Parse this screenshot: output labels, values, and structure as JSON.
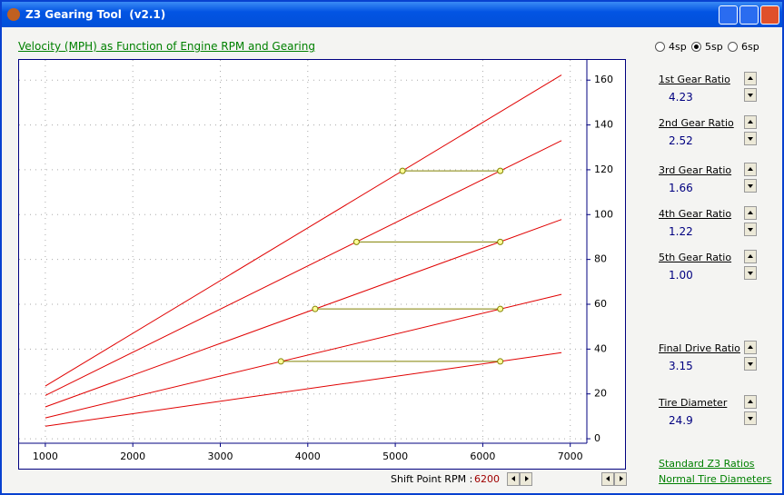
{
  "ui": {
    "window_title": "Z3 Gearing Tool  (v2.1)",
    "options": [
      "4sp",
      "5sp",
      "6sp"
    ],
    "gears": [
      {
        "label": "1st Gear Ratio",
        "value": "4.23"
      },
      {
        "label": "2nd Gear Ratio",
        "value": "2.52"
      },
      {
        "label": "3rd Gear Ratio",
        "value": "1.66"
      },
      {
        "label": "4th Gear Ratio",
        "value": "1.22"
      },
      {
        "label": "5th Gear Ratio",
        "value": "1.00"
      }
    ],
    "final_drive": {
      "label": "Final Drive Ratio",
      "value": "3.15"
    },
    "tire": {
      "label": "Tire Diameter",
      "value": "24.9"
    },
    "shift_label": "Shift Point RPM :",
    "shift_value": "6200",
    "links": [
      "Standard Z3 Ratios",
      "Normal Tire Diameters"
    ]
  },
  "chart_data": {
    "type": "line",
    "title": "Velocity (MPH) as Function of Engine RPM and Gearing",
    "xlim": [
      700,
      7190
    ],
    "ylim": [
      -2,
      169
    ],
    "xticks": [
      1000,
      2000,
      3000,
      4000,
      5000,
      6000,
      7000
    ],
    "yticks": [
      0,
      20,
      40,
      60,
      80,
      100,
      120,
      140,
      160
    ],
    "grid": true,
    "series": [
      {
        "color": "#e00000",
        "x": [
          1000,
          6900
        ],
        "values": [
          5.6,
          38.4
        ]
      },
      {
        "color": "#e00000",
        "x": [
          1000,
          6900
        ],
        "values": [
          9.3,
          64.4
        ]
      },
      {
        "color": "#e00000",
        "x": [
          1000,
          6900
        ],
        "values": [
          14.2,
          97.8
        ]
      },
      {
        "color": "#e00000",
        "x": [
          1000,
          6900
        ],
        "values": [
          19.3,
          133.0
        ]
      },
      {
        "color": "#e00000",
        "x": [
          1000,
          6900
        ],
        "values": [
          23.5,
          162.3
        ]
      },
      {
        "color": "#808000",
        "markers": true,
        "x": [
          3693,
          6200
        ],
        "values": [
          34.5,
          34.5
        ]
      },
      {
        "color": "#808000",
        "markers": true,
        "x": [
          4084,
          6200
        ],
        "values": [
          57.9,
          57.9
        ]
      },
      {
        "color": "#808000",
        "markers": true,
        "x": [
          4557,
          6200
        ],
        "values": [
          87.8,
          87.8
        ]
      },
      {
        "color": "#808000",
        "markers": true,
        "x": [
          5083,
          6200
        ],
        "values": [
          119.5,
          119.5
        ]
      }
    ]
  }
}
